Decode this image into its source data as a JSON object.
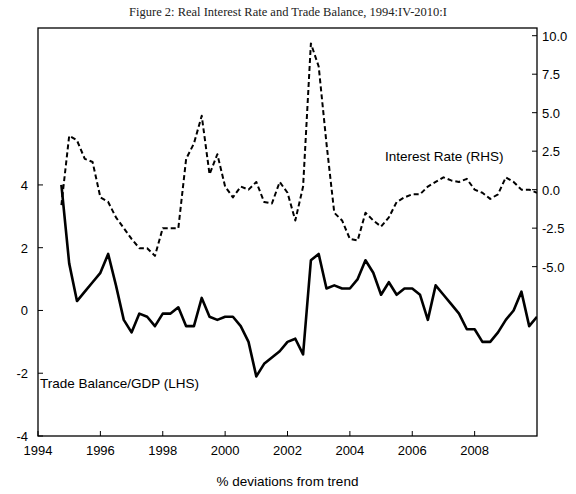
{
  "chart_data": {
    "type": "line",
    "title": "Figure 2: Real Interest Rate and Trade Balance, 1994:IV-2010:I",
    "x_label": "% deviations from trend",
    "x": [
      1994.75,
      1995,
      1995.25,
      1995.5,
      1995.75,
      1996,
      1996.25,
      1996.5,
      1996.75,
      1997,
      1997.25,
      1997.5,
      1997.75,
      1998,
      1998.25,
      1998.5,
      1998.75,
      1999,
      1999.25,
      1999.5,
      1999.75,
      2000,
      2000.25,
      2000.5,
      2000.75,
      2001,
      2001.25,
      2001.5,
      2001.75,
      2002,
      2002.25,
      2002.5,
      2002.75,
      2003,
      2003.25,
      2003.5,
      2003.75,
      2004,
      2004.25,
      2004.5,
      2004.75,
      2005,
      2005.25,
      2005.5,
      2005.75,
      2006,
      2006.25,
      2006.5,
      2006.75,
      2007,
      2007.25,
      2007.5,
      2007.75,
      2008,
      2008.25,
      2008.5,
      2008.75,
      2009,
      2009.25,
      2009.5,
      2009.75,
      2010
    ],
    "xlim": [
      1994,
      2010
    ],
    "xticks": [
      1994,
      1996,
      1998,
      2000,
      2002,
      2004,
      2006,
      2008
    ],
    "ylim": [
      -4,
      9
    ],
    "yticks": [
      -4,
      -2,
      0,
      2,
      4
    ],
    "y2lim": [
      -16,
      10.5
    ],
    "y2ticks": [
      {
        "value": -5,
        "label": "-5.0"
      },
      -2.5,
      {
        "value": 0,
        "label": "0.0"
      },
      2.5,
      {
        "value": 5,
        "label": "5.0"
      },
      7.5,
      {
        "value": 10,
        "label": "10.0"
      }
    ],
    "grid": false,
    "series": [
      {
        "name": "Interest Rate (RHS)",
        "color": "#000000",
        "line_style": "dashed",
        "axis": "y2",
        "values": [
          -1.0,
          3.5,
          3.2,
          2.0,
          1.8,
          -0.5,
          -0.8,
          -1.8,
          -2.5,
          -3.2,
          -3.8,
          -3.8,
          -4.3,
          -2.5,
          -2.5,
          -2.5,
          2.0,
          3.0,
          4.8,
          1.0,
          2.3,
          0.2,
          -0.5,
          0.2,
          0.0,
          0.5,
          -0.8,
          -0.9,
          0.5,
          -0.2,
          -2.0,
          0.2,
          9.5,
          8.0,
          3.0,
          -1.5,
          -2.0,
          -3.2,
          -3.3,
          -1.5,
          -2.0,
          -2.4,
          -1.8,
          -0.8,
          -0.5,
          -0.3,
          -0.3,
          0.2,
          0.5,
          0.8,
          0.6,
          0.5,
          0.7,
          0.0,
          -0.2,
          -0.6,
          -0.3,
          0.8,
          0.5,
          0.0,
          0.0,
          -0.2
        ]
      },
      {
        "name": "Trade Balance/GDP (LHS)",
        "color": "#000000",
        "line_style": "solid",
        "values": [
          4.0,
          1.5,
          0.3,
          0.6,
          0.9,
          1.2,
          1.8,
          0.8,
          -0.3,
          -0.7,
          -0.1,
          -0.2,
          -0.5,
          -0.1,
          -0.1,
          0.1,
          -0.5,
          -0.5,
          0.4,
          -0.2,
          -0.3,
          -0.2,
          -0.2,
          -0.5,
          -1.0,
          -2.1,
          -1.7,
          -1.5,
          -1.3,
          -1.0,
          -0.9,
          -1.4,
          1.6,
          1.8,
          0.7,
          0.8,
          0.7,
          0.7,
          1.0,
          1.6,
          1.2,
          0.5,
          0.9,
          0.5,
          0.7,
          0.7,
          0.5,
          -0.3,
          0.8,
          0.5,
          0.2,
          -0.1,
          -0.6,
          -0.6,
          -1.0,
          -1.0,
          -0.7,
          -0.3,
          0.0,
          0.6,
          -0.5,
          -0.2
        ]
      }
    ]
  }
}
